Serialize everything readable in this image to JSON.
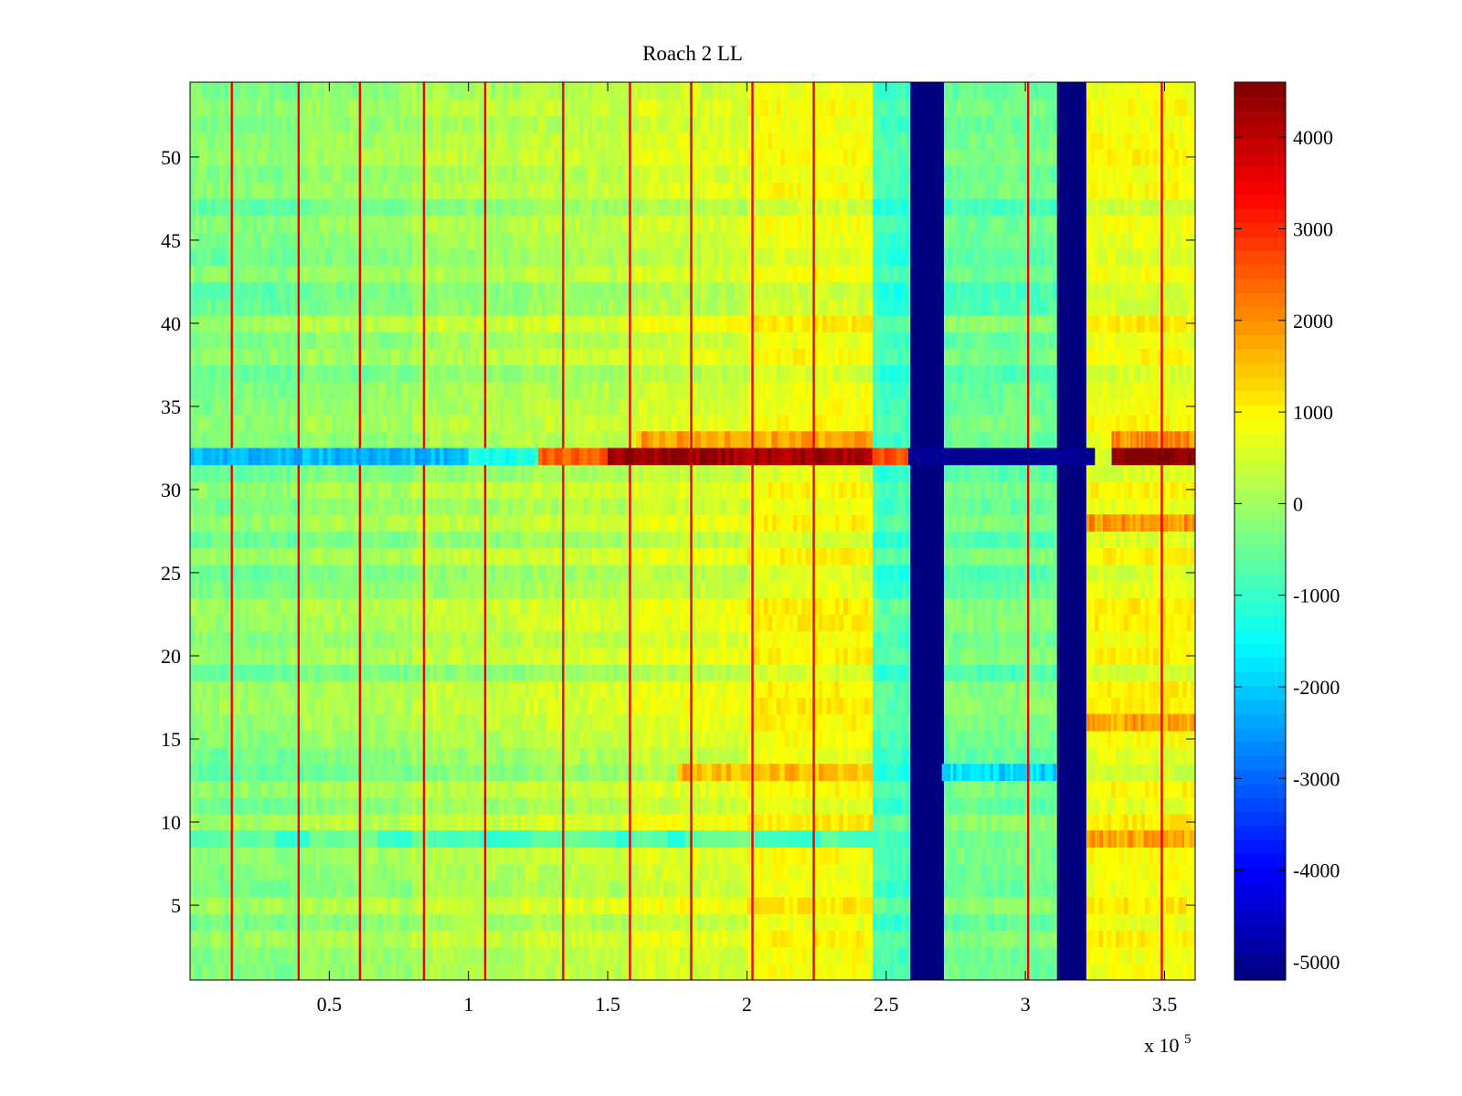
{
  "chart_data": {
    "type": "heatmap",
    "title": "Roach 2 LL",
    "xlabel": "",
    "ylabel": "",
    "x_multiplier_label": "x 10",
    "x_multiplier_exponent": "5",
    "xlim": [
      0,
      361000
    ],
    "ylim": [
      0.5,
      54.5
    ],
    "x_ticks": [
      {
        "value": 50000,
        "label": "0.5"
      },
      {
        "value": 100000,
        "label": "1"
      },
      {
        "value": 150000,
        "label": "1.5"
      },
      {
        "value": 200000,
        "label": "2"
      },
      {
        "value": 250000,
        "label": "2.5"
      },
      {
        "value": 300000,
        "label": "3"
      },
      {
        "value": 350000,
        "label": "3.5"
      }
    ],
    "y_ticks": [
      {
        "value": 5,
        "label": "5"
      },
      {
        "value": 10,
        "label": "10"
      },
      {
        "value": 15,
        "label": "15"
      },
      {
        "value": 20,
        "label": "20"
      },
      {
        "value": 25,
        "label": "25"
      },
      {
        "value": 30,
        "label": "30"
      },
      {
        "value": 35,
        "label": "35"
      },
      {
        "value": 40,
        "label": "40"
      },
      {
        "value": 45,
        "label": "45"
      },
      {
        "value": 50,
        "label": "50"
      }
    ],
    "colormap": "jet",
    "clim": [
      -5200,
      4600
    ],
    "colorbar_ticks": [
      {
        "value": 4000,
        "label": "4000"
      },
      {
        "value": 3000,
        "label": "3000"
      },
      {
        "value": 2000,
        "label": "2000"
      },
      {
        "value": 1000,
        "label": "1000"
      },
      {
        "value": 0,
        "label": "0"
      },
      {
        "value": -1000,
        "label": "-1000"
      },
      {
        "value": -2000,
        "label": "-2000"
      },
      {
        "value": -3000,
        "label": "-3000"
      },
      {
        "value": -4000,
        "label": "-4000"
      },
      {
        "value": -5000,
        "label": "-5000"
      }
    ],
    "x_bands": [
      {
        "x": [
          0,
          40000
        ],
        "value": -300
      },
      {
        "x": [
          40000,
          80000
        ],
        "value": -100
      },
      {
        "x": [
          80000,
          120000
        ],
        "value": 100
      },
      {
        "x": [
          120000,
          160000
        ],
        "value": 250
      },
      {
        "x": [
          160000,
          200000
        ],
        "value": 500
      },
      {
        "x": [
          200000,
          245000
        ],
        "value": 800
      },
      {
        "x": [
          245000,
          258000
        ],
        "value": -900
      },
      {
        "x": [
          258000,
          270000
        ],
        "value": -5200
      },
      {
        "x": [
          270000,
          311000
        ],
        "value": -500
      },
      {
        "x": [
          311000,
          322000
        ],
        "value": -5200
      },
      {
        "x": [
          322000,
          361000
        ],
        "value": 800
      }
    ],
    "spike_lines": {
      "value": 3500,
      "x": [
        15000,
        39000,
        61000,
        84000,
        106000,
        134000,
        158000,
        180000,
        202000,
        224000,
        301000,
        349000
      ]
    },
    "hot_row": {
      "row": 32,
      "segments": [
        {
          "x": [
            0,
            100000
          ],
          "value": -2200
        },
        {
          "x": [
            100000,
            125000
          ],
          "value": -1300
        },
        {
          "x": [
            125000,
            150000
          ],
          "value": 2500
        },
        {
          "x": [
            150000,
            245000
          ],
          "value": 4300
        },
        {
          "x": [
            245000,
            258000
          ],
          "value": 2600
        },
        {
          "x": [
            258000,
            325000
          ],
          "value": -5000
        },
        {
          "x": [
            325000,
            331000
          ],
          "value": 500
        },
        {
          "x": [
            331000,
            361000
          ],
          "value": 4600
        }
      ]
    },
    "row_variations": [
      {
        "row": 33,
        "x": [
          160000,
          245000
        ],
        "value": 1800
      },
      {
        "row": 33,
        "x": [
          331000,
          361000
        ],
        "value": 2000
      },
      {
        "row": 28,
        "x": [
          322000,
          361000
        ],
        "value": 2000
      },
      {
        "row": 16,
        "x": [
          322000,
          361000
        ],
        "value": 1800
      },
      {
        "row": 13,
        "x": [
          175000,
          245000
        ],
        "value": 1600
      },
      {
        "row": 13,
        "x": [
          270000,
          311000
        ],
        "value": -1900
      },
      {
        "row": 9,
        "x": [
          322000,
          361000
        ],
        "value": 1800
      },
      {
        "row": 9,
        "x": [
          0,
          245000
        ],
        "value": -800
      }
    ]
  }
}
